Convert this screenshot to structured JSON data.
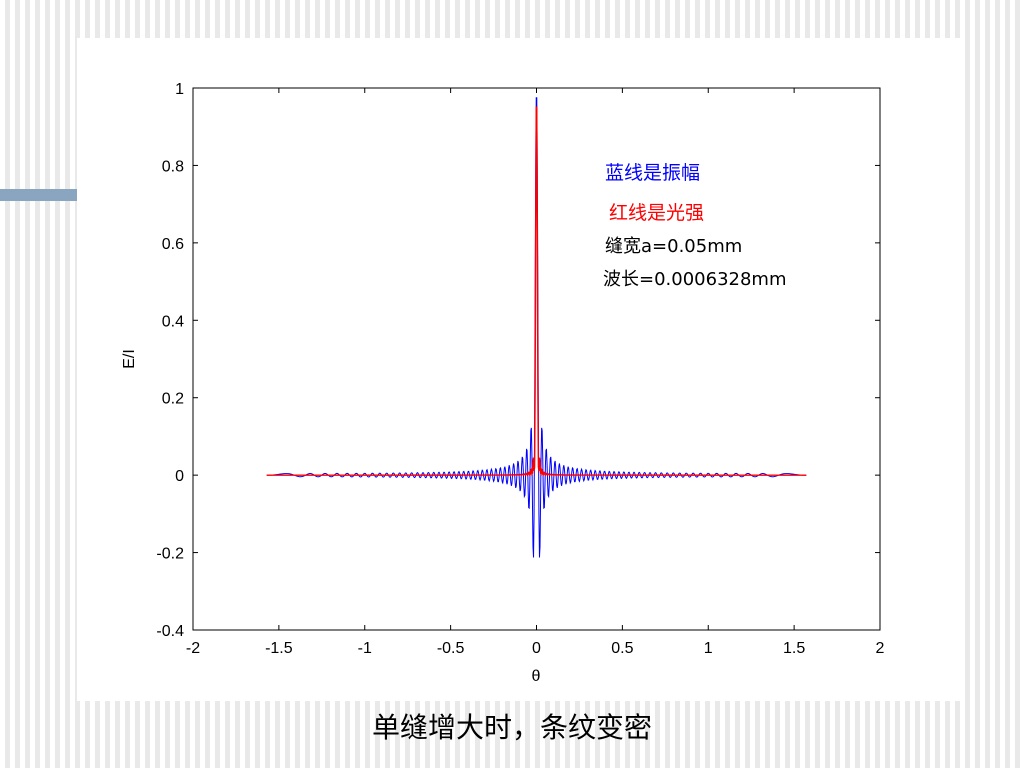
{
  "colors": {
    "amplitude": "#0000ff",
    "intensity": "#ff0000",
    "axis": "#000000",
    "accent_bar": "#8aa5bf"
  },
  "caption": "单缝增大时，条纹变密",
  "chart_data": {
    "type": "line",
    "xlabel": "θ",
    "ylabel": "E/I",
    "xlim": [
      -2,
      2
    ],
    "ylim": [
      -0.4,
      1
    ],
    "x_ticks": [
      -2,
      -1.5,
      -1,
      -0.5,
      0,
      0.5,
      1,
      1.5,
      2
    ],
    "x_tick_labels": [
      "-2",
      "-1.5",
      "-1",
      "-0.5",
      "0",
      "0.5",
      "1",
      "1.5",
      "2"
    ],
    "y_ticks": [
      -0.4,
      -0.2,
      0,
      0.2,
      0.4,
      0.6,
      0.8,
      1
    ],
    "y_tick_labels": [
      "-0.4",
      "-0.2",
      "0",
      "0.2",
      "0.4",
      "0.6",
      "0.8",
      "1"
    ],
    "grid": false,
    "slit_width_mm": 0.05,
    "wavelength_mm": 0.0006328,
    "sampling": {
      "x_start": -1.5708,
      "x_end": 1.5708,
      "num_points": 1000
    },
    "series": [
      {
        "key": "amplitude",
        "formula": "sin(π·a·sin θ/λ) / (π·a·sin θ/λ)",
        "x_range": [
          -1.5708,
          1.5708
        ],
        "y_range": [
          -0.21,
          1.0
        ]
      },
      {
        "key": "intensity",
        "formula": "[sin(π·a·sin θ/λ) / (π·a·sin θ/λ)]²",
        "x_range": [
          -1.5708,
          1.5708
        ],
        "y_range": [
          0.0,
          1.0
        ]
      }
    ],
    "annotations": [
      {
        "text": "蓝线是振幅",
        "color": "#0000ff"
      },
      {
        "text": "红线是光强",
        "color": "#ff0000"
      },
      {
        "text": "缝宽a=0.05mm",
        "color": "#000000"
      },
      {
        "text": "波长=0.0006328mm",
        "color": "#000000"
      }
    ]
  }
}
